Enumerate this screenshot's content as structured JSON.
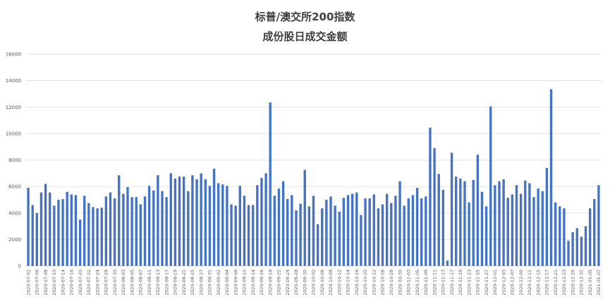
{
  "chart_data": {
    "type": "bar",
    "title": [
      "标普/澳交所200指数",
      "成份股日成交金额"
    ],
    "ylim": [
      0,
      16000
    ],
    "yticks": [
      0,
      2000,
      4000,
      6000,
      8000,
      10000,
      12000,
      14000,
      16000
    ],
    "grid": true,
    "bar_color": "#4472C4",
    "categories": [
      "2020-07-02",
      "2020-07-03",
      "2020-07-06",
      "2020-07-07",
      "2020-07-08",
      "2020-07-09",
      "2020-07-10",
      "2020-07-13",
      "2020-07-14",
      "2020-07-15",
      "2020-07-16",
      "2020-07-17",
      "2020-07-20",
      "2020-07-21",
      "2020-07-22",
      "2020-07-23",
      "2020-07-24",
      "2020-07-27",
      "2020-07-28",
      "2020-07-29",
      "2020-07-30",
      "2020-07-31",
      "2020-08-03",
      "2020-08-04",
      "2020-08-05",
      "2020-08-06",
      "2020-08-07",
      "2020-08-10",
      "2020-08-11",
      "2020-08-12",
      "2020-08-13",
      "2020-08-14",
      "2020-08-17",
      "2020-08-18",
      "2020-08-19",
      "2020-08-20",
      "2020-08-21",
      "2020-08-24",
      "2020-08-25",
      "2020-08-26",
      "2020-08-27",
      "2020-08-28",
      "2020-08-31",
      "2020-09-01",
      "2020-09-02",
      "2020-09-03",
      "2020-09-04",
      "2020-09-07",
      "2020-09-08",
      "2020-09-09",
      "2020-09-10",
      "2020-09-11",
      "2020-09-14",
      "2020-09-15",
      "2020-09-16",
      "2020-09-17",
      "2020-09-18",
      "2020-09-21",
      "2020-09-22",
      "2020-09-23",
      "2020-09-24",
      "2020-09-25",
      "2020-09-28",
      "2020-09-29",
      "2020-09-30",
      "2020-10-01",
      "2020-10-02",
      "2020-10-05",
      "2020-10-06",
      "2020-10-07",
      "2020-10-08",
      "2020-10-09",
      "2020-10-12",
      "2020-10-13",
      "2020-10-14",
      "2020-10-15",
      "2020-10-16",
      "2020-10-19",
      "2020-10-20",
      "2020-10-21",
      "2020-10-22",
      "2020-10-23",
      "2020-10-26",
      "2020-10-27",
      "2020-10-28",
      "2020-10-29",
      "2020-10-30",
      "2020-11-02",
      "2020-11-03",
      "2020-11-04",
      "2020-11-05",
      "2020-11-06",
      "2020-11-09",
      "2020-11-10",
      "2020-11-11",
      "2020-11-12",
      "2020-11-13",
      "2020-11-16",
      "2020-11-17",
      "2020-11-18",
      "2020-11-19",
      "2020-11-20",
      "2020-11-23",
      "2020-11-24",
      "2020-11-25",
      "2020-11-26",
      "2020-11-27",
      "2020-11-30",
      "2020-12-01",
      "2020-12-02",
      "2020-12-03",
      "2020-12-04",
      "2020-12-07",
      "2020-12-08",
      "2020-12-09",
      "2020-12-10",
      "2020-12-11",
      "2020-12-14",
      "2020-12-15",
      "2020-12-16",
      "2020-12-17",
      "2020-12-18",
      "2020-12-21",
      "2020-12-22",
      "2020-12-23",
      "2020-12-24",
      "2020-12-29",
      "2020-12-30",
      "2020-12-31",
      "2021-01-04",
      "2021-01-05",
      "2021-01-06",
      "2021-01-07"
    ],
    "values": [
      5900,
      4600,
      4000,
      5550,
      6200,
      5550,
      4550,
      5000,
      5050,
      5600,
      5400,
      5350,
      3500,
      5300,
      4750,
      4450,
      4350,
      4400,
      5250,
      5550,
      5100,
      6850,
      5450,
      5950,
      5200,
      5200,
      4650,
      5250,
      6050,
      5700,
      6850,
      5650,
      5200,
      7000,
      6600,
      6750,
      6750,
      5650,
      6850,
      6550,
      7000,
      6550,
      6050,
      7350,
      6250,
      6150,
      6050,
      4650,
      4550,
      6050,
      5300,
      4600,
      4600,
      6100,
      6650,
      7000,
      12350,
      5300,
      5850,
      6400,
      5050,
      5350,
      4200,
      4700,
      7250,
      4500,
      5300,
      3150,
      4350,
      5000,
      5250,
      4550,
      4100,
      5150,
      5350,
      5450,
      5550,
      3850,
      5100,
      5100,
      5400,
      4350,
      4650,
      5450,
      4750,
      5300,
      6400,
      4550,
      5100,
      5350,
      5900,
      5100,
      5250,
      10450,
      8900,
      6950,
      5750,
      400,
      8550,
      6750,
      6600,
      6400,
      4800,
      6500,
      8400,
      5600,
      4500,
      12050,
      6100,
      6400,
      6550,
      5150,
      5400,
      6100,
      5450,
      6450,
      6250,
      5200,
      5850,
      5650,
      7400,
      13350,
      4800,
      4500,
      4350,
      1900,
      2550,
      2850,
      2200,
      3000,
      4350,
      5050,
      6100
    ],
    "xtick_labels": [
      "2020-07-02",
      "2020-07-06",
      "2020-07-08",
      "2020-07-10",
      "2020-07-14",
      "2020-07-16",
      "2020-07-20",
      "2020-07-22",
      "2020-07-24",
      "2020-07-28",
      "2020-07-30",
      "2020-08-03",
      "2020-08-05",
      "2020-08-07",
      "2020-08-11",
      "2020-08-13",
      "2020-08-17",
      "2020-08-19",
      "2020-08-21",
      "2020-08-25",
      "2020-08-27",
      "2020-08-31",
      "2020-09-02",
      "2020-09-04",
      "2020-09-08",
      "2020-09-10",
      "2020-09-14",
      "2020-09-16",
      "2020-09-18",
      "2020-09-22",
      "2020-09-24",
      "2020-09-28",
      "2020-09-30",
      "2020-10-02",
      "2020-10-06",
      "2020-10-08",
      "2020-10-12",
      "2020-10-14",
      "2020-10-16",
      "2020-10-20",
      "2020-10-22",
      "2020-10-26",
      "2020-10-28",
      "2020-10-30",
      "2020-11-03",
      "2020-11-05",
      "2020-11-09",
      "2020-11-11",
      "2020-11-13",
      "2020-11-17",
      "2020-11-19",
      "2020-11-23",
      "2020-11-25",
      "2020-11-27",
      "2020-12-01",
      "2020-12-03",
      "2020-12-07",
      "2020-12-09",
      "2020-12-11",
      "2020-12-15",
      "2020-12-17",
      "2020-12-21",
      "2020-12-23",
      "2020-12-29",
      "2020-12-31",
      "2021-01-05",
      "2021-01-07"
    ]
  }
}
